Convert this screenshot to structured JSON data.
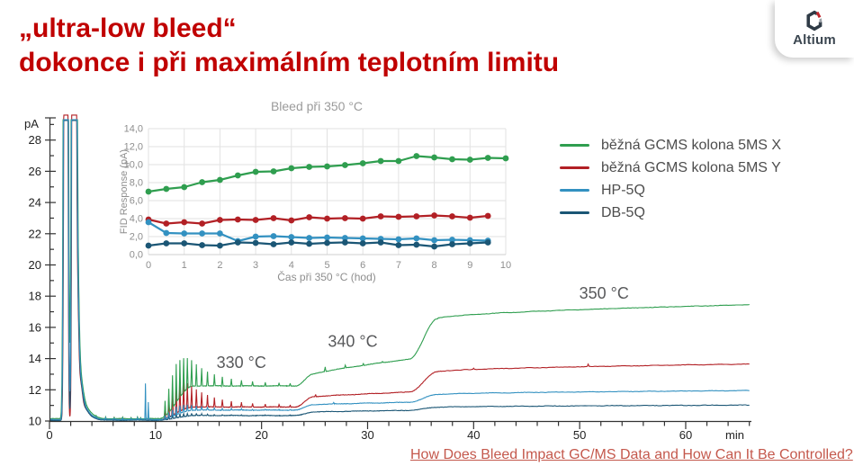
{
  "slide": {
    "title_line1": "„ultra-low bleed“",
    "title_line2": "dokonce i při maximálním teplotním limitu",
    "title_color": "#c00000",
    "background_color": "#ffffff",
    "footer_link": {
      "text": "How Does Bleed Impact GC/MS Data and How Can It Be Controlled?",
      "color": "#c4584c"
    }
  },
  "logo": {
    "text": "Altium",
    "text_color": "#3b4650",
    "icon": "altium-hexagon-icon",
    "icon_dark": "#2f3b46",
    "icon_red": "#c1272d",
    "icon_gray": "#9aa0a6"
  },
  "legend": {
    "text_color": "#4d4d4d",
    "items": [
      {
        "label": "běžná GCMS kolona 5MS X",
        "color": "#2f9e4f"
      },
      {
        "label": "běžná GCMS kolona 5MS Y",
        "color": "#b22025"
      },
      {
        "label": "HP-5Q",
        "color": "#3391c1"
      },
      {
        "label": "DB-5Q",
        "color": "#1b5675"
      }
    ]
  },
  "chart_data": [
    {
      "id": "main-chromatogram",
      "type": "line",
      "title": "",
      "xlabel": "min",
      "ylabel": "pA",
      "xlim": [
        0,
        66.5
      ],
      "ylim": [
        10,
        29.5
      ],
      "x_ticks": [
        0,
        10,
        20,
        30,
        40,
        50,
        60
      ],
      "x_minor_step": 2,
      "y_ticks": [
        10,
        12,
        14,
        16,
        18,
        20,
        22,
        24,
        26,
        28
      ],
      "y_minor_step": 1,
      "grid": false,
      "axis_color": "#333333",
      "label_color": "#222222",
      "annotation_color": "#58595b",
      "annotations": [
        {
          "text": "330 °C",
          "x_min": 18.1,
          "y_pA": 13.4
        },
        {
          "text": "340 °C",
          "x_min": 28.6,
          "y_pA": 14.75
        },
        {
          "text": "350 °C",
          "x_min": 52.3,
          "y_pA": 17.85
        }
      ],
      "temperature_program_min": {
        "ramp_to_plateau": [
          10.3,
          13.6
        ],
        "step_340C": [
          23.2,
          24.9
        ],
        "step_350C": [
          33.9,
          36.6
        ]
      },
      "solvent_peak_clusters_min": [
        [
          1.48,
          0.13
        ],
        [
          1.62,
          0.13
        ],
        [
          2.24,
          0.14
        ],
        [
          2.4,
          0.14
        ]
      ],
      "solvent_tail_min": [
        [
          1.3,
          0.09,
          3
        ],
        [
          2.62,
          0.18,
          8
        ],
        [
          2.9,
          0.3,
          2.2
        ],
        [
          3.35,
          0.45,
          0.6
        ],
        [
          3.95,
          0.6,
          0.18
        ]
      ],
      "test_peaks_min": [
        [
          10.9,
          0.4
        ],
        [
          11.25,
          0.62
        ],
        [
          11.6,
          0.84
        ],
        [
          11.95,
          1.0
        ],
        [
          12.3,
          0.97
        ],
        [
          12.65,
          0.9
        ],
        [
          13.0,
          0.8
        ],
        [
          13.4,
          0.68
        ],
        [
          13.85,
          0.57
        ],
        [
          14.35,
          0.47
        ],
        [
          14.9,
          0.38
        ],
        [
          15.55,
          0.3
        ],
        [
          16.3,
          0.24
        ],
        [
          17.15,
          0.19
        ],
        [
          18.1,
          0.15
        ],
        [
          19.15,
          0.12
        ],
        [
          20.35,
          0.1
        ],
        [
          21.65,
          0.08
        ],
        [
          22.7,
          0.07
        ]
      ],
      "early_blips_min": [
        [
          4.4,
          0.1
        ],
        [
          5.3,
          0.16
        ],
        [
          6.1,
          0.1
        ],
        [
          6.9,
          0.13
        ],
        [
          7.7,
          0.1
        ],
        [
          8.3,
          0.16
        ],
        [
          8.6,
          0.1
        ]
      ],
      "early_blip_factors": [
        0.7,
        1.0,
        0.6,
        0.35
      ],
      "series": [
        {
          "name": "běžná GCMS kolona 5MS X",
          "color": "#2f9e4f",
          "baseline_pA": 10.15,
          "plateau_330C_pA": 12.25,
          "level_340C_pA": [
            13.0,
            13.95
          ],
          "level_350C_pA": [
            16.55,
            17.45
          ],
          "test_peak_amp_pA": 2.45,
          "clip_pA": 29.3,
          "solvent_width": 1.25,
          "extra_peaks": [
            [
              26.0,
              0.3
            ],
            [
              27.9,
              0.18
            ],
            [
              29.6,
              0.12
            ],
            [
              31.4,
              0.09
            ]
          ]
        },
        {
          "name": "běžná GCMS kolona 5MS Y",
          "color": "#b22025",
          "baseline_pA": 10.1,
          "plateau_330C_pA": 10.9,
          "level_340C_pA": [
            11.55,
            11.85
          ],
          "level_350C_pA": [
            13.15,
            13.65
          ],
          "test_peak_amp_pA": 2.0,
          "clip_pA": 29.6,
          "solvent_width": 0.9,
          "extra_peaks": [
            [
              25.1,
              0.12
            ],
            [
              40.0,
              0.08
            ],
            [
              50.8,
              0.16
            ]
          ]
        },
        {
          "name": "HP-5Q",
          "color": "#3391c1",
          "baseline_pA": 10.1,
          "plateau_330C_pA": 10.7,
          "level_340C_pA": [
            11.05,
            11.2
          ],
          "level_350C_pA": [
            11.7,
            11.95
          ],
          "test_peak_amp_pA": 0.5,
          "clip_pA": 29.3,
          "solvent_width": 1.1,
          "extra_peaks": [
            [
              9.05,
              2.3
            ],
            [
              9.32,
              1.1
            ],
            [
              26.8,
              0.08
            ]
          ]
        },
        {
          "name": "DB-5Q",
          "color": "#1b5675",
          "baseline_pA": 10.05,
          "plateau_330C_pA": 10.35,
          "level_340C_pA": [
            10.58,
            10.68
          ],
          "level_350C_pA": [
            10.88,
            11.02
          ],
          "test_peak_amp_pA": 0.22,
          "clip_pA": 29.25,
          "solvent_width": 1.0,
          "extra_peaks": []
        }
      ]
    },
    {
      "id": "inset-bleed-350",
      "type": "line",
      "title": "Bleed při 350 °C",
      "xlabel": "Čas při 350 °C (hod)",
      "ylabel": "FID Response (pA)",
      "xlim": [
        0,
        10
      ],
      "ylim": [
        0,
        14
      ],
      "x_ticks": [
        0,
        1,
        2,
        3,
        4,
        5,
        6,
        7,
        8,
        9,
        10
      ],
      "y_ticks": [
        0,
        2,
        4,
        6,
        8,
        10,
        12,
        14
      ],
      "y_tick_labels": [
        "0,0",
        "2,0",
        "4,0",
        "6,0",
        "8,0",
        "10,0",
        "12,0",
        "14,0"
      ],
      "grid": true,
      "grid_color": "#e2e2e2",
      "label_color": "#8e8e8e",
      "title_color": "#9b9b9b",
      "series": [
        {
          "name": "běžná GCMS kolona 5MS X",
          "color": "#2f9e4f",
          "x": [
            0,
            0.5,
            1,
            1.5,
            2,
            2.5,
            3,
            3.5,
            4,
            4.5,
            5,
            5.5,
            6,
            6.5,
            7,
            7.5,
            8,
            8.5,
            9,
            9.5,
            10
          ],
          "values": [
            7.0,
            7.3,
            7.5,
            8.05,
            8.3,
            8.8,
            9.2,
            9.25,
            9.6,
            9.75,
            9.8,
            9.95,
            10.15,
            10.4,
            10.4,
            10.95,
            10.8,
            10.6,
            10.55,
            10.75,
            10.7
          ]
        },
        {
          "name": "běžná GCMS kolona 5MS Y",
          "color": "#b22025",
          "x": [
            0,
            0.5,
            1,
            1.5,
            2,
            2.5,
            3,
            3.5,
            4,
            4.5,
            5,
            5.5,
            6,
            6.5,
            7,
            7.5,
            8,
            8.5,
            9,
            9.5
          ],
          "values": [
            3.9,
            3.45,
            3.6,
            3.45,
            3.85,
            3.9,
            3.85,
            4.05,
            3.8,
            4.15,
            4.0,
            4.05,
            4.0,
            4.25,
            4.2,
            4.25,
            4.35,
            4.25,
            4.1,
            4.3
          ]
        },
        {
          "name": "HP-5Q",
          "color": "#3391c1",
          "x": [
            0,
            0.5,
            1,
            1.5,
            2,
            2.5,
            3,
            3.5,
            4,
            4.5,
            5,
            5.5,
            6,
            6.5,
            7,
            7.5,
            8,
            8.5,
            9,
            9.5
          ],
          "values": [
            3.6,
            2.4,
            2.35,
            2.35,
            2.35,
            1.5,
            2.0,
            2.05,
            1.95,
            1.85,
            1.9,
            1.85,
            1.8,
            1.75,
            1.7,
            1.8,
            1.6,
            1.65,
            1.6,
            1.55
          ]
        },
        {
          "name": "DB-5Q",
          "color": "#1b5675",
          "x": [
            0,
            0.5,
            1,
            1.5,
            2,
            2.5,
            3,
            3.5,
            4,
            4.5,
            5,
            5.5,
            6,
            6.5,
            7,
            7.5,
            8,
            8.5,
            9,
            9.5
          ],
          "values": [
            1.0,
            1.25,
            1.25,
            1.05,
            1.0,
            1.35,
            1.3,
            1.15,
            1.35,
            1.2,
            1.3,
            1.35,
            1.25,
            1.35,
            1.05,
            1.1,
            0.9,
            1.15,
            1.25,
            1.35
          ]
        }
      ]
    }
  ]
}
